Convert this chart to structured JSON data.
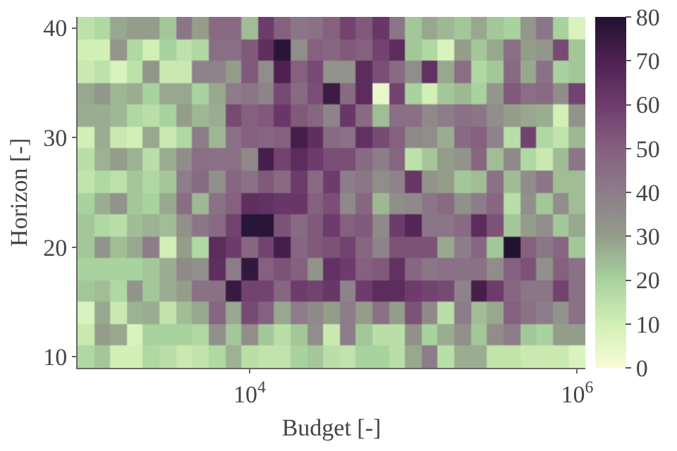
{
  "chart_data": {
    "type": "heatmap",
    "xlabel": "Budget [-]",
    "ylabel": "Horizon [-]",
    "x": [
      1000,
      1259,
      1585,
      1995,
      2512,
      3162,
      3981,
      5012,
      6310,
      7943,
      10000,
      12589,
      15849,
      19953,
      25119,
      31623,
      39811,
      50119,
      63096,
      79433,
      100000,
      125893,
      158489,
      199526,
      251189,
      316228,
      398107,
      501187,
      630957,
      794328,
      1000000
    ],
    "y": [
      40,
      38,
      36,
      34,
      32,
      30,
      28,
      26,
      24,
      22,
      20,
      18,
      16,
      14,
      12,
      10
    ],
    "log": "x",
    "xlim": [
      891,
      1122018
    ],
    "xticks": [
      {
        "value": 10000,
        "label": "10$^{4}$"
      },
      {
        "value": 1000000,
        "label": "10$^{6}$"
      }
    ],
    "ylim": [
      9,
      41
    ],
    "yticks": [
      10,
      20,
      30,
      40
    ],
    "clim": [
      0,
      80
    ],
    "cticks": [
      0,
      10,
      20,
      30,
      40,
      50,
      60,
      70,
      80
    ],
    "colors": [
      "#f8fcd8",
      "#d2efb6",
      "#a8d29e",
      "#949d8a",
      "#8d7c8a",
      "#85607f",
      "#6e3c6c",
      "#4e2152",
      "#201230"
    ],
    "cells": [
      [
        15,
        18,
        28,
        30,
        30,
        22,
        42,
        30,
        46,
        46,
        24,
        60,
        50,
        42,
        44,
        50,
        58,
        52,
        62,
        42,
        22,
        28,
        25,
        22,
        28,
        22,
        20,
        32,
        42,
        20,
        8
      ],
      [
        10,
        10,
        32,
        18,
        10,
        20,
        15,
        18,
        45,
        45,
        52,
        65,
        78,
        35,
        50,
        48,
        52,
        50,
        58,
        66,
        22,
        18,
        8,
        30,
        22,
        28,
        45,
        30,
        32,
        56,
        22
      ],
      [
        12,
        15,
        8,
        15,
        32,
        12,
        12,
        38,
        38,
        30,
        52,
        35,
        70,
        50,
        56,
        33,
        33,
        66,
        55,
        46,
        35,
        64,
        28,
        45,
        18,
        22,
        46,
        28,
        44,
        20,
        22
      ],
      [
        28,
        32,
        25,
        27,
        20,
        28,
        28,
        20,
        28,
        40,
        42,
        38,
        56,
        46,
        55,
        74,
        46,
        66,
        4,
        58,
        20,
        10,
        22,
        25,
        20,
        32,
        52,
        45,
        46,
        35,
        58
      ],
      [
        27,
        27,
        25,
        18,
        16,
        20,
        30,
        25,
        27,
        56,
        50,
        52,
        62,
        52,
        48,
        38,
        62,
        46,
        24,
        45,
        45,
        36,
        40,
        44,
        42,
        35,
        30,
        28,
        27,
        10,
        33
      ],
      [
        10,
        27,
        12,
        10,
        28,
        12,
        18,
        40,
        25,
        44,
        50,
        48,
        50,
        72,
        65,
        46,
        44,
        64,
        56,
        50,
        36,
        35,
        27,
        46,
        50,
        38,
        16,
        58,
        18,
        14,
        25
      ],
      [
        16,
        26,
        30,
        26,
        16,
        27,
        35,
        45,
        44,
        44,
        36,
        72,
        58,
        66,
        60,
        55,
        55,
        46,
        40,
        48,
        15,
        22,
        30,
        33,
        48,
        24,
        36,
        18,
        12,
        24,
        42
      ],
      [
        14,
        18,
        15,
        22,
        18,
        22,
        40,
        46,
        34,
        48,
        44,
        52,
        46,
        60,
        46,
        60,
        40,
        42,
        35,
        38,
        62,
        33,
        30,
        22,
        24,
        44,
        24,
        35,
        42,
        24,
        24
      ],
      [
        20,
        27,
        33,
        22,
        20,
        28,
        45,
        25,
        44,
        50,
        65,
        64,
        62,
        62,
        50,
        55,
        36,
        48,
        25,
        35,
        36,
        42,
        46,
        34,
        40,
        48,
        16,
        34,
        22,
        35,
        24
      ],
      [
        22,
        18,
        16,
        24,
        26,
        24,
        34,
        42,
        46,
        58,
        78,
        78,
        54,
        46,
        52,
        60,
        50,
        52,
        36,
        60,
        68,
        42,
        42,
        46,
        66,
        54,
        22,
        30,
        35,
        22,
        28
      ],
      [
        22,
        33,
        24,
        28,
        40,
        10,
        30,
        18,
        66,
        60,
        48,
        58,
        72,
        48,
        52,
        54,
        58,
        48,
        38,
        54,
        54,
        54,
        28,
        40,
        48,
        22,
        80,
        50,
        42,
        48,
        22
      ],
      [
        20,
        20,
        20,
        20,
        22,
        27,
        36,
        34,
        65,
        40,
        76,
        50,
        54,
        50,
        33,
        64,
        60,
        50,
        52,
        64,
        48,
        42,
        44,
        44,
        44,
        35,
        50,
        54,
        34,
        50,
        44
      ],
      [
        22,
        24,
        18,
        33,
        22,
        27,
        30,
        44,
        44,
        75,
        58,
        58,
        48,
        60,
        58,
        62,
        38,
        60,
        66,
        66,
        60,
        58,
        56,
        38,
        72,
        60,
        48,
        42,
        42,
        58,
        44
      ],
      [
        8,
        28,
        12,
        26,
        27,
        14,
        24,
        28,
        48,
        28,
        56,
        50,
        28,
        40,
        36,
        30,
        40,
        30,
        44,
        30,
        54,
        36,
        16,
        40,
        24,
        28,
        50,
        44,
        40,
        33,
        44
      ],
      [
        12,
        30,
        28,
        8,
        20,
        20,
        20,
        18,
        34,
        22,
        35,
        22,
        16,
        22,
        35,
        12,
        40,
        22,
        16,
        16,
        34,
        20,
        27,
        34,
        22,
        35,
        40,
        22,
        20,
        30,
        30
      ],
      [
        18,
        22,
        10,
        10,
        18,
        16,
        12,
        14,
        18,
        26,
        16,
        14,
        14,
        20,
        22,
        16,
        14,
        20,
        20,
        16,
        28,
        40,
        16,
        27,
        27,
        14,
        14,
        12,
        12,
        12,
        8
      ]
    ]
  }
}
